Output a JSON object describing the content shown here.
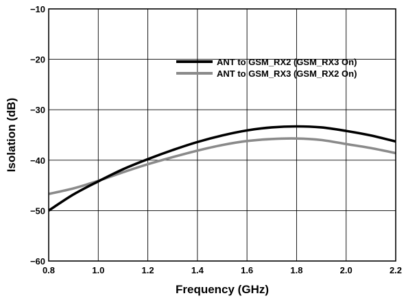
{
  "chart_data": {
    "type": "line",
    "title": "",
    "xlabel": "Frequency (GHz)",
    "ylabel": "Isolation (dB)",
    "xlim": [
      0.8,
      2.2
    ],
    "ylim": [
      -60,
      -10
    ],
    "xticks": [
      0.8,
      1.0,
      1.2,
      1.4,
      1.6,
      1.8,
      2.0,
      2.2
    ],
    "xtick_labels": [
      "0.8",
      "1.0",
      "1.2",
      "1.4",
      "1.6",
      "1.8",
      "2.0",
      "2.2"
    ],
    "yticks": [
      -10,
      -20,
      -30,
      -40,
      -50,
      -60
    ],
    "ytick_labels": [
      "−10",
      "−20",
      "−30",
      "−40",
      "−50",
      "−60"
    ],
    "grid": true,
    "legend_position": "top-right",
    "series": [
      {
        "name": "ANT to GSM_RX2 (GSM_RX3 On)",
        "color": "#000000",
        "x": [
          0.8,
          0.9,
          1.0,
          1.1,
          1.2,
          1.3,
          1.4,
          1.5,
          1.6,
          1.7,
          1.8,
          1.9,
          2.0,
          2.1,
          2.2
        ],
        "y": [
          -50.0,
          -46.8,
          -44.2,
          -41.8,
          -39.8,
          -38.0,
          -36.4,
          -35.1,
          -34.1,
          -33.5,
          -33.3,
          -33.5,
          -34.2,
          -35.1,
          -36.3
        ]
      },
      {
        "name": "ANT to GSM_RX3 (GSM_RX2 On)",
        "color": "#8a8a8a",
        "x": [
          0.8,
          0.9,
          1.0,
          1.1,
          1.2,
          1.3,
          1.4,
          1.5,
          1.6,
          1.7,
          1.8,
          1.9,
          2.0,
          2.1,
          2.2
        ],
        "y": [
          -46.7,
          -45.6,
          -44.1,
          -42.4,
          -40.8,
          -39.4,
          -38.1,
          -37.0,
          -36.2,
          -35.8,
          -35.7,
          -36.0,
          -36.8,
          -37.6,
          -38.6
        ]
      }
    ]
  }
}
